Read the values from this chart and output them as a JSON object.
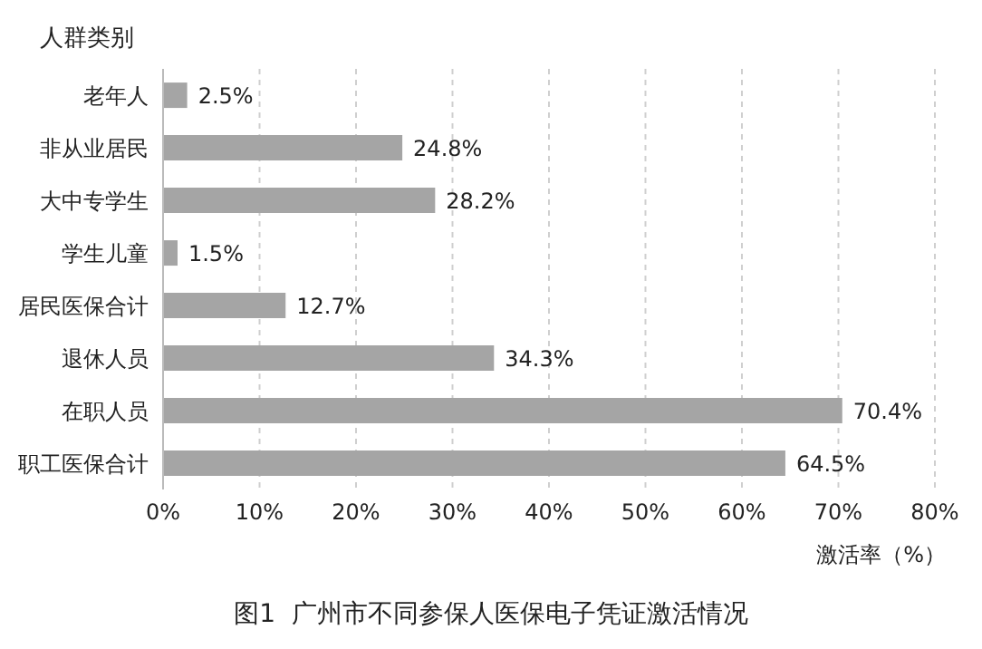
{
  "chart_data": {
    "type": "bar",
    "orientation": "horizontal",
    "title": "图1  广州市不同参保人医保电子凭证激活情况",
    "ylabel": "人群类别",
    "xlabel": "激活率（%）",
    "categories": [
      "老年人",
      "非从业居民",
      "大中专学生",
      "学生儿童",
      "居民医保合计",
      "退休人员",
      "在职人员",
      "职工医保合计"
    ],
    "values": [
      2.5,
      24.8,
      28.2,
      1.5,
      12.7,
      34.3,
      70.4,
      64.5
    ],
    "value_labels": [
      "2.5%",
      "24.8%",
      "28.2%",
      "1.5%",
      "12.7%",
      "34.3%",
      "70.4%",
      "64.5%"
    ],
    "color": "#a5a5a5",
    "xlim": [
      0,
      80
    ],
    "xticks": [
      {
        "value": 0,
        "label": "0%"
      },
      {
        "value": 10,
        "label": "10%"
      },
      {
        "value": 20,
        "label": "20%"
      },
      {
        "value": 30,
        "label": "30%"
      },
      {
        "value": 40,
        "label": "40%"
      },
      {
        "value": 50,
        "label": "50%"
      },
      {
        "value": 60,
        "label": "60%"
      },
      {
        "value": 70,
        "label": "70%"
      },
      {
        "value": 80,
        "label": "80%"
      }
    ],
    "grid": "x"
  }
}
